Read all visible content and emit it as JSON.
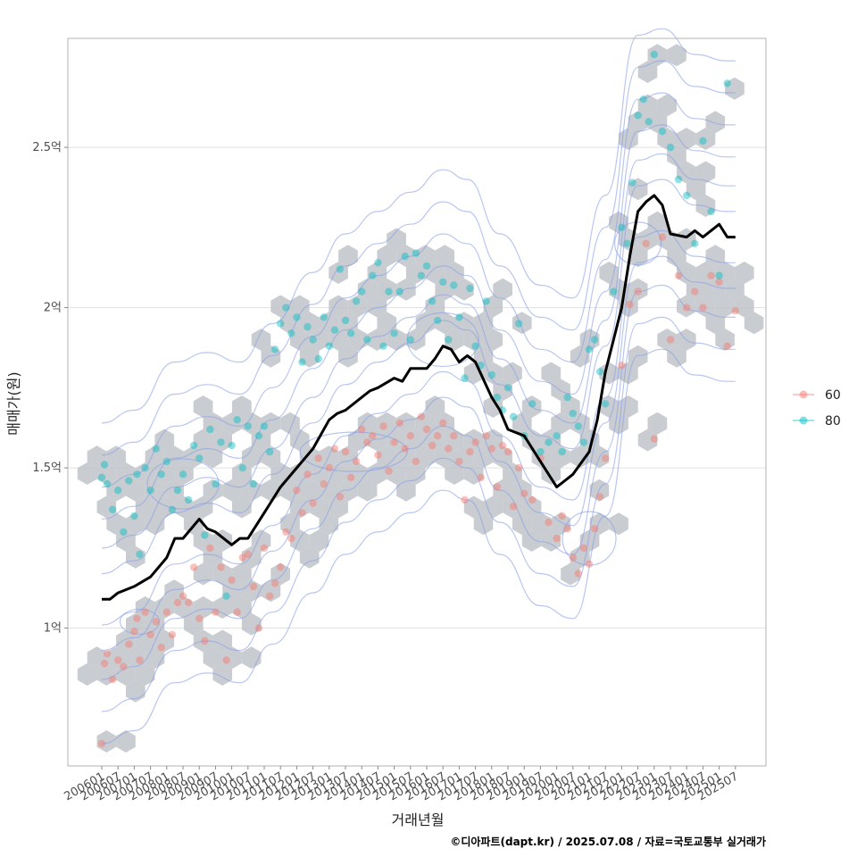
{
  "chart_data": {
    "type": "scatter",
    "xlabel": "거래년월",
    "ylabel": "매매가(원)",
    "caption": "©디아파트(dapt.kr) / 2025.07.08 / 자료=국토교통부 실거래가",
    "x_ticks": [
      "200601",
      "200607",
      "200701",
      "200707",
      "200801",
      "200807",
      "200901",
      "200907",
      "201001",
      "201007",
      "201101",
      "201107",
      "201201",
      "201207",
      "201301",
      "201307",
      "201401",
      "201407",
      "201501",
      "201507",
      "201601",
      "201607",
      "201701",
      "201707",
      "201801",
      "201807",
      "201901",
      "201907",
      "202001",
      "202007",
      "202101",
      "202107",
      "202201",
      "202207",
      "202301",
      "202307",
      "202401",
      "202407",
      "202501",
      "202507"
    ],
    "y_ticks": [
      {
        "value": 1.0,
        "label": "1억"
      },
      {
        "value": 1.5,
        "label": "1.5억"
      },
      {
        "value": 2.0,
        "label": "2억"
      },
      {
        "value": 2.5,
        "label": "2.5억"
      }
    ],
    "ylim": [
      0.57,
      2.84
    ],
    "grid": "horizontal",
    "legend": {
      "position": "right",
      "entries": [
        {
          "label": "60",
          "color": "#F8766D"
        },
        {
          "label": "80",
          "color": "#00BFC4"
        }
      ]
    },
    "colors": {
      "hex": "#bfc3c8",
      "contour": "#8aa0e6",
      "line": "#000000",
      "series_60": "#F8766D",
      "series_80": "#00BFC4"
    },
    "trend_line": [
      {
        "x": "2006-01",
        "y": 1.09
      },
      {
        "x": "2006-04",
        "y": 1.09
      },
      {
        "x": "2006-07",
        "y": 1.11
      },
      {
        "x": "2007-01",
        "y": 1.13
      },
      {
        "x": "2007-07",
        "y": 1.16
      },
      {
        "x": "2008-01",
        "y": 1.22
      },
      {
        "x": "2008-04",
        "y": 1.28
      },
      {
        "x": "2008-07",
        "y": 1.28
      },
      {
        "x": "2009-01",
        "y": 1.34
      },
      {
        "x": "2009-04",
        "y": 1.31
      },
      {
        "x": "2009-07",
        "y": 1.3
      },
      {
        "x": "2010-01",
        "y": 1.26
      },
      {
        "x": "2010-04",
        "y": 1.28
      },
      {
        "x": "2010-07",
        "y": 1.28
      },
      {
        "x": "2011-01",
        "y": 1.36
      },
      {
        "x": "2011-04",
        "y": 1.4
      },
      {
        "x": "2011-07",
        "y": 1.44
      },
      {
        "x": "2012-01",
        "y": 1.5
      },
      {
        "x": "2012-07",
        "y": 1.56
      },
      {
        "x": "2013-01",
        "y": 1.65
      },
      {
        "x": "2013-04",
        "y": 1.67
      },
      {
        "x": "2013-07",
        "y": 1.68
      },
      {
        "x": "2014-01",
        "y": 1.72
      },
      {
        "x": "2014-04",
        "y": 1.74
      },
      {
        "x": "2014-07",
        "y": 1.75
      },
      {
        "x": "2015-01",
        "y": 1.78
      },
      {
        "x": "2015-04",
        "y": 1.77
      },
      {
        "x": "2015-07",
        "y": 1.81
      },
      {
        "x": "2016-01",
        "y": 1.81
      },
      {
        "x": "2016-04",
        "y": 1.84
      },
      {
        "x": "2016-07",
        "y": 1.88
      },
      {
        "x": "2016-10",
        "y": 1.87
      },
      {
        "x": "2017-01",
        "y": 1.83
      },
      {
        "x": "2017-04",
        "y": 1.85
      },
      {
        "x": "2017-07",
        "y": 1.83
      },
      {
        "x": "2018-01",
        "y": 1.72
      },
      {
        "x": "2018-04",
        "y": 1.68
      },
      {
        "x": "2018-07",
        "y": 1.62
      },
      {
        "x": "2019-01",
        "y": 1.6
      },
      {
        "x": "2019-07",
        "y": 1.52
      },
      {
        "x": "2020-01",
        "y": 1.44
      },
      {
        "x": "2020-04",
        "y": 1.46
      },
      {
        "x": "2020-07",
        "y": 1.48
      },
      {
        "x": "2021-01",
        "y": 1.55
      },
      {
        "x": "2021-04",
        "y": 1.65
      },
      {
        "x": "2021-07",
        "y": 1.8
      },
      {
        "x": "2022-01",
        "y": 2.0
      },
      {
        "x": "2022-04",
        "y": 2.16
      },
      {
        "x": "2022-07",
        "y": 2.3
      },
      {
        "x": "2022-10",
        "y": 2.33
      },
      {
        "x": "2023-01",
        "y": 2.35
      },
      {
        "x": "2023-04",
        "y": 2.32
      },
      {
        "x": "2023-07",
        "y": 2.23
      },
      {
        "x": "2024-01",
        "y": 2.22
      },
      {
        "x": "2024-04",
        "y": 2.24
      },
      {
        "x": "2024-07",
        "y": 2.22
      },
      {
        "x": "2025-01",
        "y": 2.26
      },
      {
        "x": "2025-04",
        "y": 2.22
      },
      {
        "x": "2025-07",
        "y": 2.22
      }
    ],
    "series": [
      {
        "name": "60",
        "points": [
          [
            "2006-01",
            0.64
          ],
          [
            "2006-02",
            0.89
          ],
          [
            "2006-03",
            0.92
          ],
          [
            "2006-05",
            0.84
          ],
          [
            "2006-07",
            0.9
          ],
          [
            "2006-09",
            0.88
          ],
          [
            "2006-11",
            0.95
          ],
          [
            "2007-01",
            0.99
          ],
          [
            "2007-02",
            1.03
          ],
          [
            "2007-03",
            0.9
          ],
          [
            "2007-05",
            1.05
          ],
          [
            "2007-07",
            0.98
          ],
          [
            "2007-09",
            1.02
          ],
          [
            "2007-11",
            0.94
          ],
          [
            "2008-01",
            1.05
          ],
          [
            "2008-03",
            0.98
          ],
          [
            "2008-05",
            1.08
          ],
          [
            "2008-07",
            1.1
          ],
          [
            "2008-09",
            1.08
          ],
          [
            "2008-11",
            1.19
          ],
          [
            "2009-01",
            1.03
          ],
          [
            "2009-03",
            0.96
          ],
          [
            "2009-05",
            1.25
          ],
          [
            "2009-07",
            1.05
          ],
          [
            "2009-09",
            1.19
          ],
          [
            "2009-11",
            0.9
          ],
          [
            "2010-01",
            1.15
          ],
          [
            "2010-03",
            1.05
          ],
          [
            "2010-05",
            1.22
          ],
          [
            "2010-07",
            1.23
          ],
          [
            "2010-09",
            1.13
          ],
          [
            "2010-11",
            1.0
          ],
          [
            "2011-01",
            1.25
          ],
          [
            "2011-03",
            1.1
          ],
          [
            "2011-05",
            1.14
          ],
          [
            "2011-07",
            1.19
          ],
          [
            "2011-09",
            1.3
          ],
          [
            "2011-11",
            1.28
          ],
          [
            "2012-01",
            1.43
          ],
          [
            "2012-03",
            1.36
          ],
          [
            "2012-05",
            1.48
          ],
          [
            "2012-07",
            1.39
          ],
          [
            "2012-09",
            1.53
          ],
          [
            "2012-11",
            1.45
          ],
          [
            "2013-01",
            1.5
          ],
          [
            "2013-03",
            1.56
          ],
          [
            "2013-05",
            1.41
          ],
          [
            "2013-07",
            1.55
          ],
          [
            "2013-09",
            1.47
          ],
          [
            "2013-11",
            1.52
          ],
          [
            "2014-01",
            1.62
          ],
          [
            "2014-03",
            1.58
          ],
          [
            "2014-05",
            1.6
          ],
          [
            "2014-07",
            1.54
          ],
          [
            "2014-09",
            1.63
          ],
          [
            "2014-11",
            1.49
          ],
          [
            "2015-01",
            1.58
          ],
          [
            "2015-03",
            1.64
          ],
          [
            "2015-05",
            1.56
          ],
          [
            "2015-07",
            1.6
          ],
          [
            "2015-09",
            1.52
          ],
          [
            "2015-11",
            1.66
          ],
          [
            "2016-01",
            1.62
          ],
          [
            "2016-03",
            1.57
          ],
          [
            "2016-05",
            1.6
          ],
          [
            "2016-07",
            1.64
          ],
          [
            "2016-09",
            1.56
          ],
          [
            "2016-11",
            1.6
          ],
          [
            "2017-01",
            1.52
          ],
          [
            "2017-03",
            1.4
          ],
          [
            "2017-05",
            1.55
          ],
          [
            "2017-07",
            1.58
          ],
          [
            "2017-09",
            1.47
          ],
          [
            "2017-11",
            1.6
          ],
          [
            "2018-01",
            1.56
          ],
          [
            "2018-03",
            1.44
          ],
          [
            "2018-05",
            1.57
          ],
          [
            "2018-07",
            1.55
          ],
          [
            "2018-09",
            1.38
          ],
          [
            "2018-11",
            1.5
          ],
          [
            "2019-01",
            1.42
          ],
          [
            "2019-04",
            1.4
          ],
          [
            "2019-07",
            1.53
          ],
          [
            "2019-10",
            1.33
          ],
          [
            "2020-01",
            1.28
          ],
          [
            "2020-03",
            1.35
          ],
          [
            "2020-05",
            1.31
          ],
          [
            "2020-07",
            1.22
          ],
          [
            "2020-09",
            1.17
          ],
          [
            "2020-11",
            1.25
          ],
          [
            "2021-01",
            1.2
          ],
          [
            "2021-03",
            1.31
          ],
          [
            "2021-05",
            1.41
          ],
          [
            "2021-07",
            1.53
          ],
          [
            "2022-01",
            1.82
          ],
          [
            "2022-04",
            2.01
          ],
          [
            "2022-07",
            2.05
          ],
          [
            "2022-10",
            2.2
          ],
          [
            "2023-01",
            1.59
          ],
          [
            "2023-04",
            2.22
          ],
          [
            "2023-07",
            1.9
          ],
          [
            "2023-10",
            2.1
          ],
          [
            "2024-01",
            2.0
          ],
          [
            "2024-04",
            2.05
          ],
          [
            "2024-07",
            2.0
          ],
          [
            "2024-10",
            2.1
          ],
          [
            "2025-01",
            2.08
          ],
          [
            "2025-04",
            1.88
          ],
          [
            "2025-07",
            1.99
          ]
        ]
      },
      {
        "name": "80",
        "points": [
          [
            "2006-01",
            1.47
          ],
          [
            "2006-02",
            1.51
          ],
          [
            "2006-03",
            1.45
          ],
          [
            "2006-05",
            1.37
          ],
          [
            "2006-07",
            1.43
          ],
          [
            "2006-09",
            1.3
          ],
          [
            "2006-11",
            1.46
          ],
          [
            "2007-01",
            1.35
          ],
          [
            "2007-02",
            1.48
          ],
          [
            "2007-03",
            1.23
          ],
          [
            "2007-05",
            1.5
          ],
          [
            "2007-07",
            1.43
          ],
          [
            "2007-09",
            1.56
          ],
          [
            "2007-11",
            1.48
          ],
          [
            "2008-01",
            1.52
          ],
          [
            "2008-03",
            1.37
          ],
          [
            "2008-05",
            1.43
          ],
          [
            "2008-07",
            1.48
          ],
          [
            "2008-09",
            1.4
          ],
          [
            "2008-11",
            1.57
          ],
          [
            "2009-01",
            1.53
          ],
          [
            "2009-03",
            1.29
          ],
          [
            "2009-05",
            1.62
          ],
          [
            "2009-07",
            1.45
          ],
          [
            "2009-09",
            1.58
          ],
          [
            "2009-11",
            1.1
          ],
          [
            "2010-01",
            1.57
          ],
          [
            "2010-03",
            1.65
          ],
          [
            "2010-05",
            1.5
          ],
          [
            "2010-07",
            1.63
          ],
          [
            "2010-09",
            1.45
          ],
          [
            "2010-11",
            1.6
          ],
          [
            "2011-01",
            1.63
          ],
          [
            "2011-03",
            1.55
          ],
          [
            "2011-05",
            1.87
          ],
          [
            "2011-07",
            1.95
          ],
          [
            "2011-09",
            2.0
          ],
          [
            "2011-11",
            1.92
          ],
          [
            "2012-01",
            1.97
          ],
          [
            "2012-03",
            1.83
          ],
          [
            "2012-05",
            1.94
          ],
          [
            "2012-07",
            1.9
          ],
          [
            "2012-09",
            1.84
          ],
          [
            "2012-11",
            1.97
          ],
          [
            "2013-01",
            1.88
          ],
          [
            "2013-03",
            1.93
          ],
          [
            "2013-05",
            2.12
          ],
          [
            "2013-07",
            1.96
          ],
          [
            "2013-09",
            1.92
          ],
          [
            "2013-11",
            2.02
          ],
          [
            "2014-01",
            2.05
          ],
          [
            "2014-03",
            1.9
          ],
          [
            "2014-05",
            2.1
          ],
          [
            "2014-07",
            2.14
          ],
          [
            "2014-09",
            1.88
          ],
          [
            "2014-11",
            2.05
          ],
          [
            "2015-01",
            1.92
          ],
          [
            "2015-03",
            2.05
          ],
          [
            "2015-05",
            2.16
          ],
          [
            "2015-07",
            1.9
          ],
          [
            "2015-09",
            2.17
          ],
          [
            "2015-11",
            2.1
          ],
          [
            "2016-01",
            2.13
          ],
          [
            "2016-03",
            2.02
          ],
          [
            "2016-05",
            1.96
          ],
          [
            "2016-07",
            2.08
          ],
          [
            "2016-09",
            1.9
          ],
          [
            "2016-11",
            2.07
          ],
          [
            "2017-01",
            1.97
          ],
          [
            "2017-03",
            1.78
          ],
          [
            "2017-05",
            2.06
          ],
          [
            "2017-07",
            1.88
          ],
          [
            "2017-09",
            1.82
          ],
          [
            "2017-11",
            2.02
          ],
          [
            "2018-01",
            1.79
          ],
          [
            "2018-03",
            1.72
          ],
          [
            "2018-05",
            1.68
          ],
          [
            "2018-07",
            1.75
          ],
          [
            "2018-09",
            1.66
          ],
          [
            "2018-11",
            1.95
          ],
          [
            "2019-01",
            1.6
          ],
          [
            "2019-04",
            1.7
          ],
          [
            "2019-07",
            1.55
          ],
          [
            "2019-10",
            1.58
          ],
          [
            "2020-01",
            1.6
          ],
          [
            "2020-03",
            1.55
          ],
          [
            "2020-05",
            1.72
          ],
          [
            "2020-07",
            1.67
          ],
          [
            "2020-09",
            1.63
          ],
          [
            "2020-11",
            1.58
          ],
          [
            "2021-01",
            1.87
          ],
          [
            "2021-03",
            1.9
          ],
          [
            "2021-05",
            1.8
          ],
          [
            "2021-07",
            1.7
          ],
          [
            "2021-10",
            2.05
          ],
          [
            "2022-01",
            2.25
          ],
          [
            "2022-03",
            2.2
          ],
          [
            "2022-05",
            2.39
          ],
          [
            "2022-07",
            2.6
          ],
          [
            "2022-09",
            2.65
          ],
          [
            "2022-11",
            2.58
          ],
          [
            "2023-01",
            2.79
          ],
          [
            "2023-04",
            2.55
          ],
          [
            "2023-07",
            2.5
          ],
          [
            "2023-10",
            2.4
          ],
          [
            "2024-01",
            2.35
          ],
          [
            "2024-04",
            2.2
          ],
          [
            "2024-07",
            2.52
          ],
          [
            "2024-10",
            2.3
          ],
          [
            "2025-01",
            2.1
          ],
          [
            "2025-04",
            2.7
          ]
        ]
      }
    ]
  }
}
